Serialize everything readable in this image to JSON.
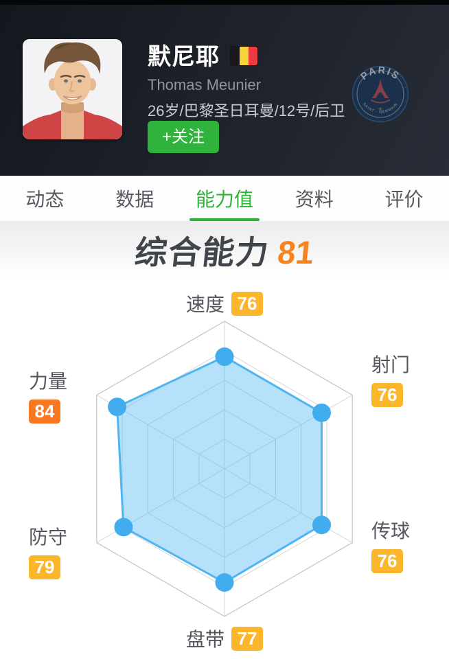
{
  "header": {
    "player_name": "默尼耶",
    "player_name_en": "Thomas Meunier",
    "player_meta": "26岁/巴黎圣日耳曼/12号/后卫",
    "follow_label": "+关注",
    "nationality_flag": "belgium-flag",
    "club_badge": {
      "top_text": "PARIS",
      "bottom_text": "SAINT - GERMAIN"
    }
  },
  "tabs": [
    {
      "label": "动态"
    },
    {
      "label": "数据"
    },
    {
      "label": "能力值"
    },
    {
      "label": "资料"
    },
    {
      "label": "评价"
    }
  ],
  "active_tab": "能力值",
  "overall": {
    "label": "综合能力",
    "value": "81"
  },
  "chart_data": {
    "type": "radar",
    "categories": [
      "速度",
      "射门",
      "传球",
      "盘带",
      "防守",
      "力量"
    ],
    "values": [
      76,
      76,
      76,
      77,
      79,
      84
    ],
    "max": 100,
    "grid_levels": [
      0.2,
      0.4,
      0.6,
      0.8,
      1.0
    ],
    "legend": "none",
    "fill_color": "#52b7f2",
    "fill_opacity": 0.42,
    "stroke_color": "#4fb5f0",
    "dot_color": "#42adee",
    "grid_color": "#d6d6d6",
    "outer_grid_color": "#c8c8c8",
    "badge_high_color": "#f8791f",
    "badge_normal_color": "#fbb62b",
    "high_threshold": 80
  },
  "colors": {
    "accent_green": "#2cb33b",
    "accent_orange": "#f8821d",
    "header_bg": "#1d2129"
  }
}
